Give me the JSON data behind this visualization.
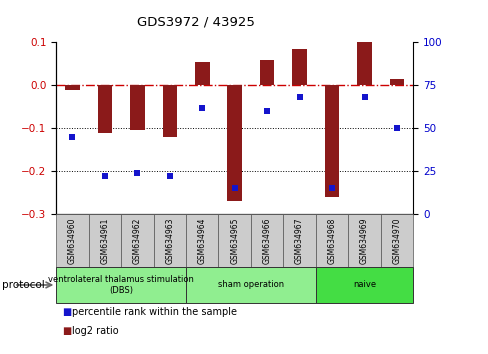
{
  "title": "GDS3972 / 43925",
  "samples": [
    "GSM634960",
    "GSM634961",
    "GSM634962",
    "GSM634963",
    "GSM634964",
    "GSM634965",
    "GSM634966",
    "GSM634967",
    "GSM634968",
    "GSM634969",
    "GSM634970"
  ],
  "log2_ratio": [
    -0.01,
    -0.11,
    -0.105,
    -0.12,
    0.055,
    -0.27,
    0.06,
    0.085,
    -0.26,
    0.1,
    0.015
  ],
  "percentile_rank": [
    45,
    22,
    24,
    22,
    62,
    15,
    60,
    68,
    15,
    68,
    50
  ],
  "bar_color": "#8B1A1A",
  "dot_color": "#1414CC",
  "ref_line_color": "#CC0000",
  "right_axis_color": "#0000CC",
  "ylim_left": [
    -0.3,
    0.1
  ],
  "ylim_right": [
    0,
    100
  ],
  "yticks_left": [
    -0.3,
    -0.2,
    -0.1,
    0.0,
    0.1
  ],
  "yticks_right": [
    0,
    25,
    50,
    75,
    100
  ],
  "group_ranges": [
    [
      0,
      3
    ],
    [
      4,
      7
    ],
    [
      8,
      10
    ]
  ],
  "group_labels": [
    "ventrolateral thalamus stimulation\n(DBS)",
    "sham operation",
    "naive"
  ],
  "group_colors": [
    "#90EE90",
    "#90EE90",
    "#44DD44"
  ],
  "protocol_label": "protocol",
  "legend_items": [
    {
      "color": "#8B1A1A",
      "label": "log2 ratio"
    },
    {
      "color": "#1414CC",
      "label": "percentile rank within the sample"
    }
  ]
}
